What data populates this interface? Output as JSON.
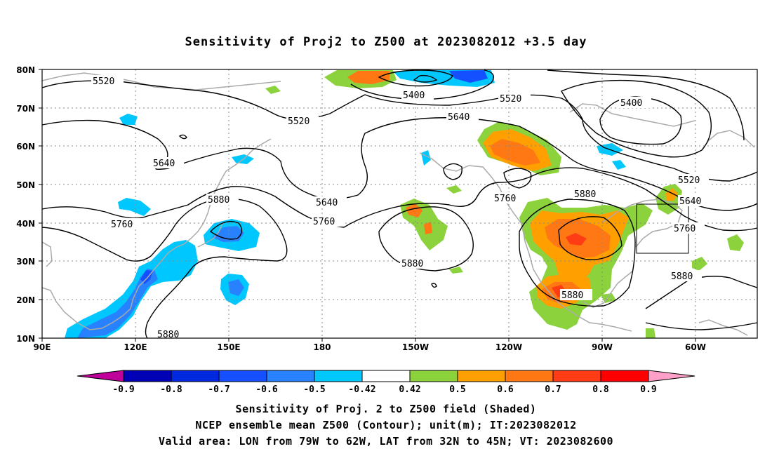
{
  "title": "Sensitivity of Proj2 to Z500 at 2023082012 +3.5 day",
  "lat_labels": [
    "80N",
    "70N",
    "60N",
    "50N",
    "40N",
    "30N",
    "20N",
    "10N"
  ],
  "lon_labels": [
    "90E",
    "120E",
    "150E",
    "180",
    "150W",
    "120W",
    "90W",
    "60W"
  ],
  "contour_labels": {
    "c5520a": "5520",
    "c5400a": "5400",
    "c5520b": "5520",
    "c5400b": "5400",
    "c5520c": "5520",
    "c5640a": "5640",
    "c5640b": "5640",
    "c5880a": "5880",
    "c5760a": "5760",
    "c5640c": "5640",
    "c5760b": "5760",
    "c5880b": "5880",
    "c5760c": "5760",
    "c5880c": "5880",
    "c5520d": "5520",
    "c5640d": "5640",
    "c5760d": "5760",
    "c5880d": "5880",
    "c5880e": "5880",
    "c5880f": "5880"
  },
  "colorbar": {
    "labels": [
      "-0.9",
      "-0.8",
      "-0.7",
      "-0.6",
      "-0.5",
      "-0.42",
      "0.42",
      "0.5",
      "0.6",
      "0.7",
      "0.8",
      "0.9"
    ],
    "colors": [
      "#c0009a",
      "#0000b4",
      "#0028dc",
      "#1450ff",
      "#2882ff",
      "#00c8ff",
      "#ffffff",
      "#8cd23c",
      "#ffa000",
      "#ff7814",
      "#ff3c14",
      "#ff0000",
      "#ffa0c8"
    ]
  },
  "footer": {
    "line1": "Sensitivity of Proj. 2 to Z500 field (Shaded)",
    "line2": "NCEP ensemble mean Z500 (Contour); unit(m); IT:2023082012",
    "line3": "Valid area: LON from 79W to 62W, LAT from 32N to 45N; VT: 2023082600"
  }
}
